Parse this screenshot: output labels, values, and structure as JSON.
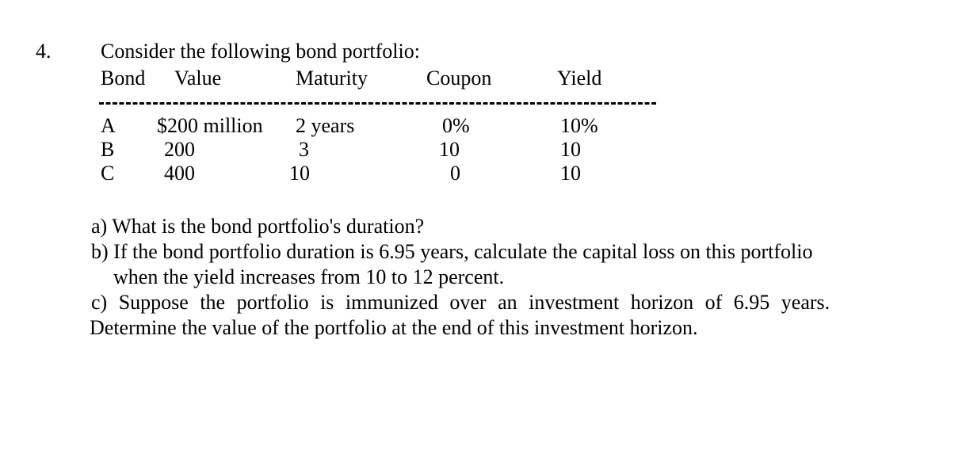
{
  "document": {
    "question_number": "4.",
    "intro": "Consider the following bond portfolio:",
    "table": {
      "headers": [
        "Bond",
        "Value",
        "Maturity",
        "Coupon",
        "Yield"
      ],
      "rows": [
        [
          "A",
          "$200 million",
          "2 years",
          "0%",
          "10%"
        ],
        [
          "B",
          "200",
          "3",
          "10",
          "10"
        ],
        [
          "C",
          "400",
          "10",
          "0",
          "10"
        ]
      ]
    },
    "questions": {
      "a": "a) What is the bond portfolio's duration?",
      "b_line1": "b) If the bond portfolio duration is 6.95 years, calculate the capital loss on this portfolio",
      "b_line2": "when the yield increases from 10 to 12 percent.",
      "c_line1": "c) Suppose the portfolio is immunized over an investment horizon of 6.95 years.",
      "c_line2": "Determine the value of the portfolio at the end of this investment horizon."
    },
    "colors": {
      "text": "#000000",
      "background": "#ffffff"
    }
  }
}
